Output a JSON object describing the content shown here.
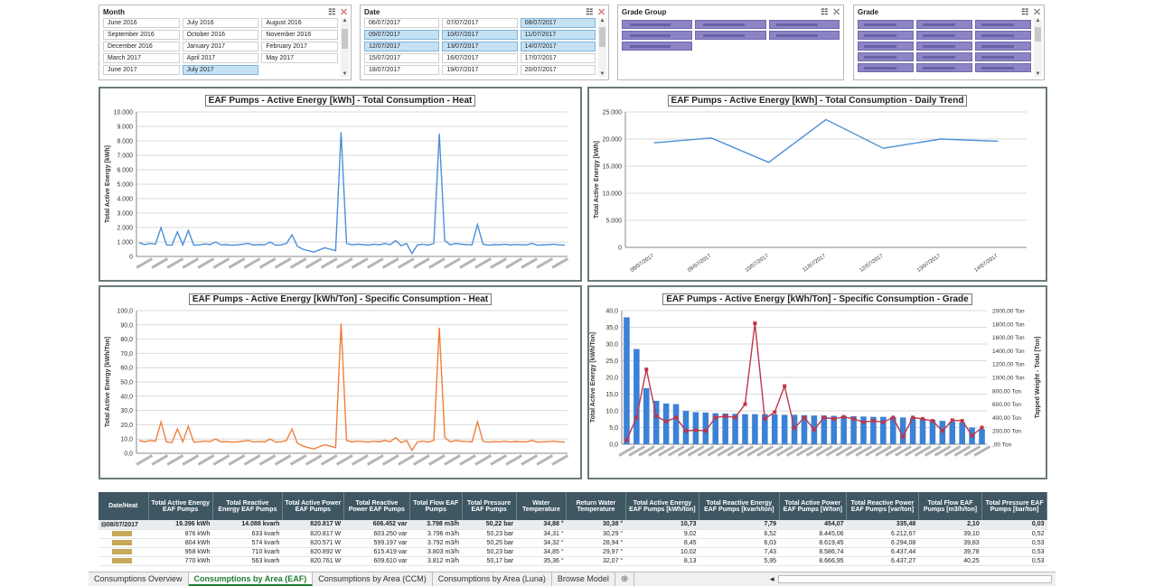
{
  "slicers": {
    "month": {
      "title": "Month",
      "items": [
        {
          "label": "June 2016",
          "sel": false
        },
        {
          "label": "July 2016",
          "sel": false
        },
        {
          "label": "August 2016",
          "sel": false
        },
        {
          "label": "September 2016",
          "sel": false
        },
        {
          "label": "October 2016",
          "sel": false
        },
        {
          "label": "November 2016",
          "sel": false
        },
        {
          "label": "December 2016",
          "sel": false
        },
        {
          "label": "January 2017",
          "sel": false
        },
        {
          "label": "February 2017",
          "sel": false
        },
        {
          "label": "March 2017",
          "sel": false
        },
        {
          "label": "April 2017",
          "sel": false
        },
        {
          "label": "May 2017",
          "sel": false
        },
        {
          "label": "June 2017",
          "sel": false
        },
        {
          "label": "July 2017",
          "sel": true
        }
      ]
    },
    "date": {
      "title": "Date",
      "items": [
        {
          "label": "06/07/2017",
          "sel": false
        },
        {
          "label": "07/07/2017",
          "sel": false
        },
        {
          "label": "08/07/2017",
          "sel": true
        },
        {
          "label": "09/07/2017",
          "sel": true
        },
        {
          "label": "10/07/2017",
          "sel": true
        },
        {
          "label": "11/07/2017",
          "sel": true
        },
        {
          "label": "12/07/2017",
          "sel": true
        },
        {
          "label": "13/07/2017",
          "sel": true
        },
        {
          "label": "14/07/2017",
          "sel": true
        },
        {
          "label": "15/07/2017",
          "sel": false
        },
        {
          "label": "16/07/2017",
          "sel": false
        },
        {
          "label": "17/07/2017",
          "sel": false
        },
        {
          "label": "18/07/2017",
          "sel": false
        },
        {
          "label": "19/07/2017",
          "sel": false
        },
        {
          "label": "20/07/2017",
          "sel": false
        }
      ]
    },
    "grade_group": {
      "title": "Grade Group"
    },
    "grade": {
      "title": "Grade"
    }
  },
  "charts": {
    "heat_total": {
      "title": "EAF Pumps - Active Energy [kWh] - Total Consumption - Heat",
      "ylabel": "Total Active Energy [kWh]",
      "color": "#4a90d9",
      "ylim": [
        0,
        10000
      ],
      "ticks": [
        "0",
        "1.000",
        "2.000",
        "3.000",
        "4.000",
        "5.000",
        "6.000",
        "7.000",
        "8.000",
        "9.000",
        "10.000"
      ],
      "values": [
        950,
        820,
        900,
        850,
        2000,
        800,
        780,
        1700,
        800,
        1800,
        780,
        800,
        860,
        820,
        1000,
        800,
        820,
        780,
        800,
        850,
        900,
        790,
        820,
        800,
        1000,
        780,
        800,
        900,
        1500,
        700,
        500,
        400,
        300,
        450,
        600,
        500,
        400,
        8600,
        900,
        800,
        850,
        820,
        780,
        850,
        800,
        900,
        810,
        1100,
        750,
        900,
        200,
        800,
        850,
        780,
        900,
        8500,
        1100,
        800,
        900,
        850,
        820,
        800,
        2200,
        850,
        780,
        820,
        800,
        850,
        790,
        830,
        810,
        800,
        900,
        780,
        800,
        820,
        850,
        800,
        790
      ]
    },
    "daily": {
      "title": "EAF Pumps - Active Energy [kWh] - Total Consumption - Daily Trend",
      "ylabel": "Total Active Energy [kWh]",
      "color": "#4a90d9",
      "ylim": [
        0,
        25000
      ],
      "ticks": [
        "0",
        "5.000",
        "10.000",
        "15.000",
        "20.000",
        "25.000"
      ],
      "categories": [
        "08/07/2017",
        "09/07/2017",
        "10/07/2017",
        "11/07/2017",
        "12/07/2017",
        "13/07/2017",
        "14/07/2017"
      ],
      "values": [
        19300,
        20200,
        15700,
        23600,
        18300,
        20000,
        19600
      ]
    },
    "heat_specific": {
      "title": "EAF Pumps - Active Energy [kWh/Ton] - Specific Consumption - Heat",
      "ylabel": "Total Active Energy [kWh/Ton]",
      "color": "#f07f3c",
      "ylim": [
        0,
        100
      ],
      "ticks": [
        "0,0",
        "10,0",
        "20,0",
        "30,0",
        "40,0",
        "50,0",
        "60,0",
        "70,0",
        "80,0",
        "90,0",
        "100,0"
      ],
      "values": [
        9,
        8,
        9,
        8.5,
        22,
        8,
        7.5,
        17,
        8,
        19,
        7.8,
        8,
        8.6,
        8.2,
        10,
        8,
        8.2,
        7.8,
        8,
        8.5,
        9,
        7.9,
        8.2,
        8,
        10,
        7.8,
        8,
        9,
        17,
        7,
        5,
        4,
        3,
        4.5,
        6,
        5,
        4,
        91,
        9,
        8,
        8.5,
        8.2,
        7.8,
        8.5,
        8,
        9,
        8.1,
        11,
        7.5,
        9,
        2,
        8,
        8.5,
        7.8,
        9,
        88,
        11,
        8,
        9,
        8.5,
        8.2,
        8,
        22,
        8.5,
        7.8,
        8.2,
        8,
        8.5,
        7.9,
        8.3,
        8.1,
        8,
        9,
        7.8,
        8,
        8.2,
        8.5,
        8,
        7.9
      ]
    },
    "grade": {
      "title": "EAF Pumps - Active Energy [kWh/Ton] - Specific Consumption - Grade",
      "ylabel": "Total Active Energy [kWh/Ton]",
      "y2label": "Tapped Weight - Total [Ton]",
      "bar_color": "#3b82d6",
      "line_color": "#c0344a",
      "ylim": [
        0,
        40
      ],
      "y2lim": [
        0,
        2000
      ],
      "ticks": [
        "0,0",
        "5,0",
        "10,0",
        "15,0",
        "20,0",
        "25,0",
        "30,0",
        "35,0",
        "40,0"
      ],
      "ticks2": [
        ",00 Ton",
        "200,00 Ton",
        "400,00 Ton",
        "600,00 Ton",
        "800,00 Ton",
        "1000,00 Ton",
        "1200,00 Ton",
        "1400,00 Ton",
        "1600,00 Ton",
        "1800,00 Ton",
        "2000,00 Ton"
      ],
      "bars": [
        38,
        28.5,
        16.8,
        13,
        12.2,
        12,
        10,
        9.6,
        9.5,
        9.3,
        9.2,
        9.1,
        9,
        9,
        9,
        8.9,
        8.8,
        8.8,
        8.7,
        8.6,
        8.6,
        8.5,
        8.4,
        8.4,
        8.3,
        8.2,
        8.2,
        8.1,
        8,
        7.9,
        7.5,
        7.3,
        7,
        6.8,
        6.5,
        5,
        4.5
      ],
      "line": [
        60,
        400,
        1120,
        420,
        340,
        400,
        200,
        210,
        200,
        400,
        420,
        400,
        600,
        1810,
        380,
        480,
        870,
        240,
        400,
        220,
        400,
        380,
        410,
        380,
        330,
        350,
        330,
        400,
        110,
        400,
        380,
        350,
        200,
        360,
        350,
        130,
        250
      ]
    }
  },
  "table": {
    "headers": [
      "Date/Heat",
      "Total Active Energy EAF Pumps",
      "Total Reactive Energy EAF Pumps",
      "Total Active Power EAF Pumps",
      "Total Reactive Power EAF Pumps",
      "Total Flow EAF Pumps",
      "Total Pressure EAF Pumps",
      "Water Temperature",
      "Return Water Temperature",
      "Total Active Energy EAF Pumps [kWh/ton]",
      "Total Reactive Energy EAF Pumps [kvarh/ton]",
      "Total Active Power EAF Pumps [W/ton]",
      "Total Reactive Power EAF Pumps [var/ton]",
      "Total Flow EAF Pumps [m3/h/ton]",
      "Total Pressure EAF Pumps [bar/ton]"
    ],
    "total": [
      "⊟08/07/2017",
      "19.396  kWh",
      "14.088  kvarh",
      "820.817 W",
      "606.452 var",
      "3.798 m3/h",
      "50,22 bar",
      "34,88 °",
      "30,38 °",
      "10,73",
      "7,79",
      "454,07",
      "335,48",
      "2,10",
      "0,03"
    ],
    "rows": [
      [
        "",
        "876  kWh",
        "633  kvarh",
        "820.817 W",
        "603.250 var",
        "3.796 m3/h",
        "50,23 bar",
        "34,31 °",
        "30,29 °",
        "9,02",
        "6,52",
        "8.445,06",
        "6.212,67",
        "39,10",
        "0,52"
      ],
      [
        "",
        "804  kWh",
        "574  kvarh",
        "820.571 W",
        "599.197 var",
        "3.792 m3/h",
        "50,25 bar",
        "34,32 °",
        "28,94 °",
        "8,45",
        "6,03",
        "8.619,45",
        "6.294,08",
        "39,83",
        "0,53"
      ],
      [
        "",
        "958  kWh",
        "710  kvarh",
        "820.892 W",
        "615.419 var",
        "3.803 m3/h",
        "50,23 bar",
        "34,85 °",
        "29,97 °",
        "10,02",
        "7,43",
        "8.586,74",
        "6.437,44",
        "39,78",
        "0,53"
      ],
      [
        "",
        "770  kWh",
        "563  kvarh",
        "820.761 W",
        "609.610 var",
        "3.812 m3/h",
        "50,17 bar",
        "35,36 °",
        "32,07 °",
        "8,13",
        "5,95",
        "8.666,95",
        "6.437,27",
        "40,25",
        "0,53"
      ]
    ]
  },
  "tabs": [
    "Consumptions Overview",
    "Consumptions by Area (EAF)",
    "Consumptions by Area (CCM)",
    "Consumptions by Area (Luna)",
    "Browse Model",
    "⊕"
  ],
  "active_tab": 1
}
